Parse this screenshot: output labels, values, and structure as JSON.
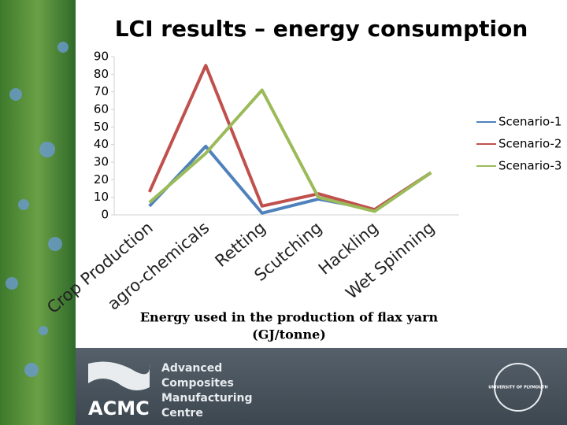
{
  "chart_data": {
    "type": "line",
    "title": "LCI results – energy consumption",
    "categories": [
      "Crop Production",
      "agro-chemicals",
      "Retting",
      "Scutching",
      "Hackling",
      "Wet Spinning"
    ],
    "series": [
      {
        "name": "Scenario-1",
        "color": "#4f81bd",
        "values": [
          5,
          39,
          1,
          9,
          3,
          24
        ]
      },
      {
        "name": "Scenario-2",
        "color": "#c0504d",
        "values": [
          13,
          85,
          5,
          12,
          3,
          24
        ]
      },
      {
        "name": "Scenario-3",
        "color": "#9bbb59",
        "values": [
          7,
          35,
          71,
          10,
          2,
          24
        ]
      }
    ],
    "ylim": [
      0,
      90
    ],
    "yticks": [
      0,
      10,
      20,
      30,
      40,
      50,
      60,
      70,
      80,
      90
    ],
    "x_label": [
      "Energy used in the production of flax yarn",
      "(GJ/tonne)"
    ],
    "legend": "right",
    "grid": false
  },
  "footer": {
    "logo": "ACMC",
    "lines": [
      "Advanced",
      "Composites",
      "Manufacturing",
      "Centre"
    ],
    "university": "UNIVERSITY OF PLYMOUTH"
  }
}
